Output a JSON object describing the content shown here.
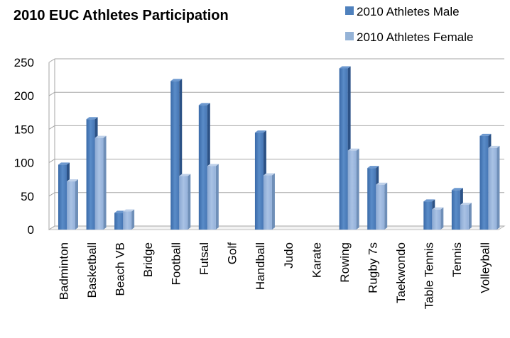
{
  "chart_data": {
    "type": "bar",
    "title": "2010 EUC Athletes Participation",
    "xlabel": "",
    "ylabel": "",
    "ylim": [
      0,
      250
    ],
    "yticks": [
      0,
      50,
      100,
      150,
      200,
      250
    ],
    "grid": true,
    "legend_position": "top-right",
    "style": "3d-clustered-column",
    "categories": [
      "Badminton",
      "Basketball",
      "Beach VB",
      "Bridge",
      "Football",
      "Futsal",
      "Golf",
      "Handball",
      "Judo",
      "Karate",
      "Rowing",
      "Rugby 7s",
      "Taekwondo",
      "Table Tennis",
      "Tennis",
      "Volleyball"
    ],
    "series": [
      {
        "name": "2010 Athletes Male",
        "color": "#4F81BD",
        "values": [
          97,
          165,
          25,
          0,
          222,
          186,
          0,
          145,
          0,
          0,
          241,
          92,
          0,
          42,
          59,
          140
        ]
      },
      {
        "name": "2010 Athletes Female",
        "color": "#95B3D7",
        "values": [
          72,
          137,
          27,
          0,
          80,
          95,
          0,
          81,
          0,
          0,
          118,
          67,
          0,
          30,
          37,
          122
        ]
      }
    ]
  }
}
